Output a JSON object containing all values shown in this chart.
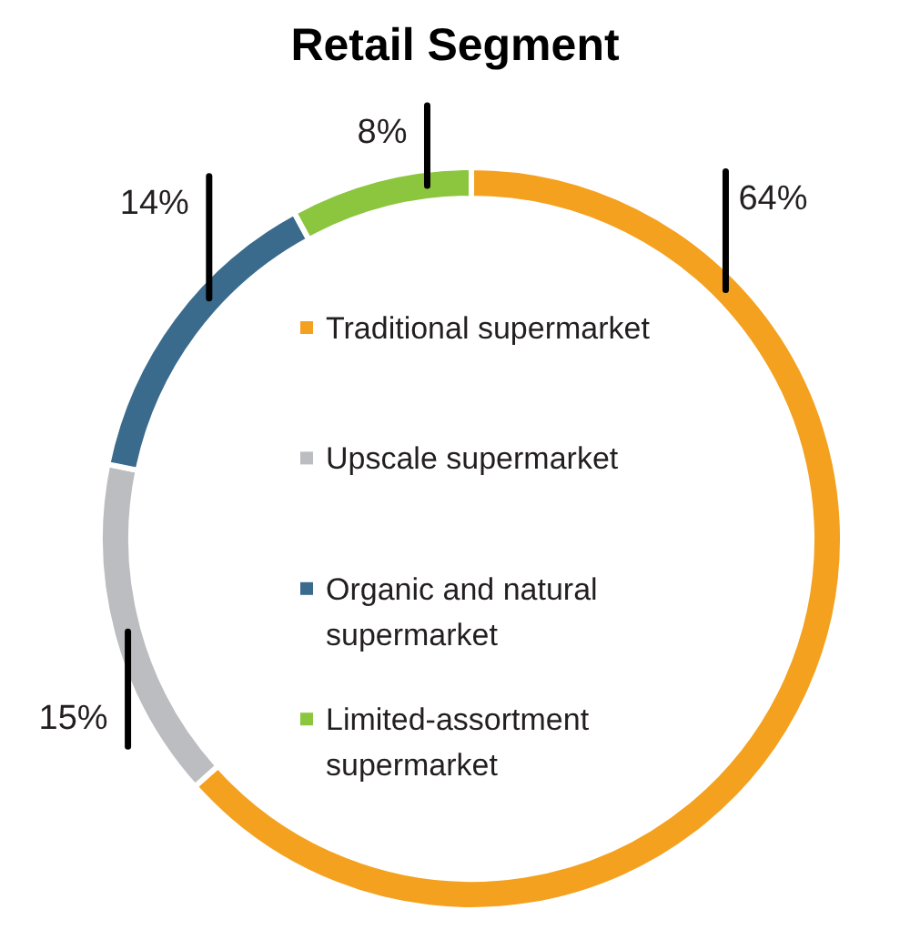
{
  "chart_data": {
    "type": "donut",
    "title": "Retail Segment",
    "categories": [
      "Traditional supermarket",
      "Upscale supermarket",
      "Organic and natural supermarket",
      "Limited-assortment supermarket"
    ],
    "values": [
      64,
      15,
      14,
      8
    ],
    "colors": [
      "#f4a11f",
      "#bcbdc0",
      "#3a6b8c",
      "#8cc63f"
    ],
    "value_labels": [
      "64%",
      "15%",
      "14%",
      "8%"
    ],
    "legend": "center"
  }
}
